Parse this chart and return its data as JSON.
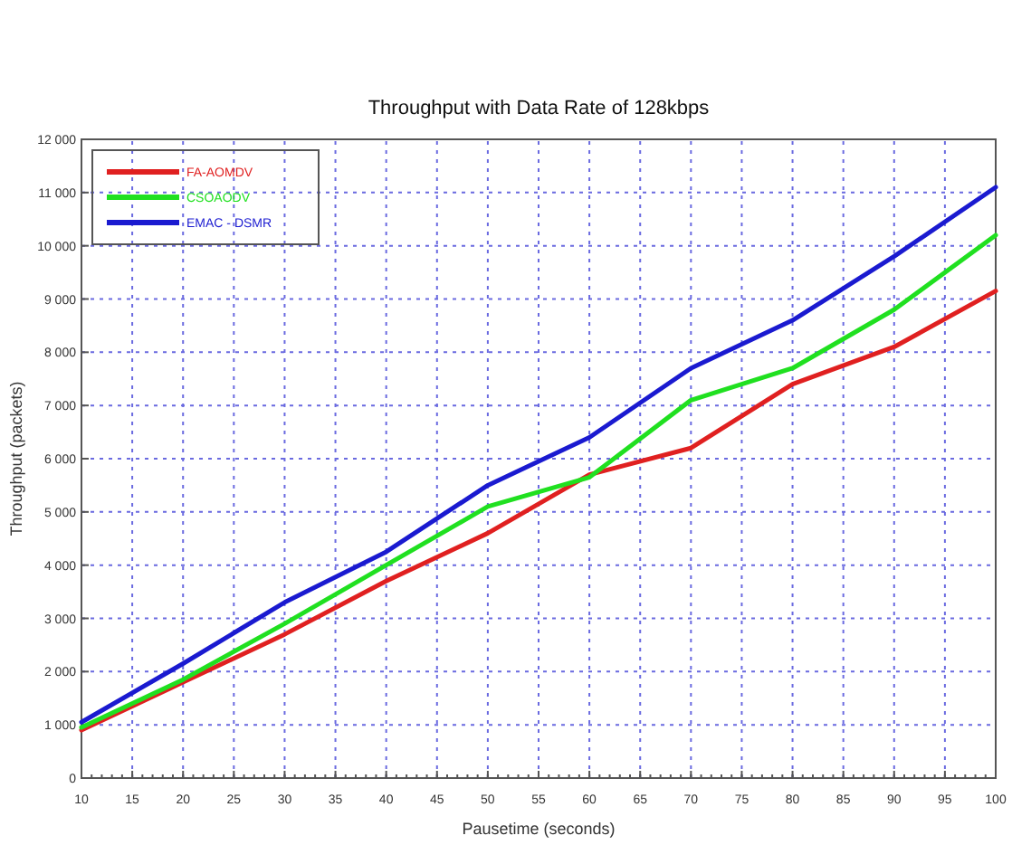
{
  "chart_data": {
    "type": "line",
    "title": "Throughput with Data Rate of 128kbps",
    "xlabel": "Pausetime (seconds)",
    "ylabel": "Throughput (packets)",
    "x": [
      10,
      20,
      30,
      40,
      50,
      60,
      70,
      80,
      90,
      100
    ],
    "series": [
      {
        "name": "FA-AOMDV",
        "color": "#e02020",
        "values": [
          900,
          1800,
          2700,
          3700,
          4600,
          5700,
          6200,
          7400,
          8100,
          9150
        ]
      },
      {
        "name": "CSOAODV",
        "color": "#20e020",
        "values": [
          950,
          1850,
          2900,
          4000,
          5100,
          5650,
          7100,
          7700,
          8800,
          10200
        ]
      },
      {
        "name": "EMAC - DSMR",
        "color": "#1a1ad0",
        "values": [
          1050,
          2150,
          3300,
          4250,
          5500,
          6400,
          7700,
          8600,
          9800,
          11100
        ]
      }
    ],
    "xlim": [
      10,
      100
    ],
    "xticks": [
      10,
      15,
      20,
      25,
      30,
      35,
      40,
      45,
      50,
      55,
      60,
      65,
      70,
      75,
      80,
      85,
      90,
      95,
      100
    ],
    "ylim": [
      0,
      12000
    ],
    "yticks": [
      0,
      {
        "value": 1000,
        "label": "1 000"
      },
      {
        "value": 2000,
        "label": "2 000"
      },
      {
        "value": 3000,
        "label": "3 000"
      },
      {
        "value": 4000,
        "label": "4 000"
      },
      {
        "value": 5000,
        "label": "5 000"
      },
      {
        "value": 6000,
        "label": "6 000"
      },
      {
        "value": 7000,
        "label": "7 000"
      },
      {
        "value": 8000,
        "label": "8 000"
      },
      {
        "value": 9000,
        "label": "9 000"
      },
      {
        "value": 10000,
        "label": "10 000"
      },
      {
        "value": 11000,
        "label": "11 000"
      },
      {
        "value": 12000,
        "label": "12 000"
      }
    ],
    "grid": true,
    "legend": "top left",
    "marker": "none",
    "line_style": "solid"
  }
}
